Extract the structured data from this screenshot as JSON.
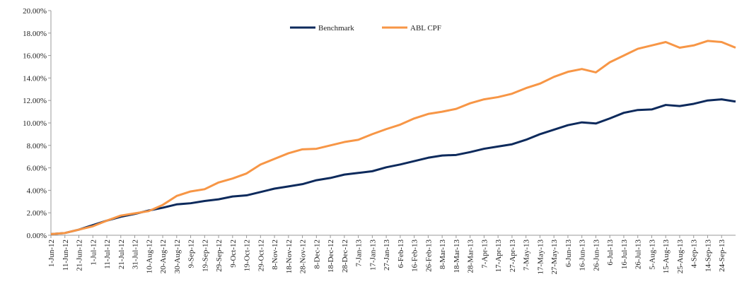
{
  "chart_data": {
    "type": "line",
    "categories": [
      "1-Jun-12",
      "11-Jun-12",
      "21-Jun-12",
      "1-Jul-12",
      "11-Jul-12",
      "21-Jul-12",
      "31-Jul-12",
      "10-Aug-12",
      "20-Aug-12",
      "30-Aug-12",
      "9-Sep-12",
      "19-Sep-12",
      "29-Sep-12",
      "9-Oct-12",
      "19-Oct-12",
      "29-Oct-12",
      "8-Nov-12",
      "18-Nov-12",
      "28-Nov-12",
      "8-Dec-12",
      "18-Dec-12",
      "28-Dec-12",
      "7-Jan-13",
      "17-Jan-13",
      "27-Jan-13",
      "6-Feb-13",
      "16-Feb-13",
      "26-Feb-13",
      "8-Mar-13",
      "18-Mar-13",
      "28-Mar-13",
      "7-Apr-13",
      "17-Apr-13",
      "27-Apr-13",
      "7-May-13",
      "17-May-13",
      "27-May-13",
      "6-Jun-13",
      "16-Jun-13",
      "26-Jun-13",
      "6-Jul-13",
      "16-Jul-13",
      "26-Jul-13",
      "5-Aug-13",
      "15-Aug-13",
      "25-Aug-13",
      "4-Sep-13",
      "14-Sep-13",
      "24-Sep-13",
      null
    ],
    "series": [
      {
        "name": "Benchmark",
        "color": "#0d2a5c",
        "values": [
          0.1,
          0.2,
          0.5,
          0.9,
          1.3,
          1.65,
          1.9,
          2.2,
          2.45,
          2.75,
          2.85,
          3.05,
          3.2,
          3.45,
          3.55,
          3.85,
          4.15,
          4.35,
          4.55,
          4.9,
          5.1,
          5.4,
          5.55,
          5.7,
          6.05,
          6.3,
          6.6,
          6.9,
          7.1,
          7.15,
          7.4,
          7.7,
          7.9,
          8.1,
          8.5,
          9.0,
          9.4,
          9.8,
          10.05,
          9.95,
          10.4,
          10.9,
          11.15,
          11.2,
          11.6,
          11.5,
          11.7,
          12.0,
          12.1,
          11.9
        ]
      },
      {
        "name": "ABL CPF",
        "color": "#f79646",
        "values": [
          0.1,
          0.2,
          0.5,
          0.8,
          1.3,
          1.75,
          1.95,
          2.15,
          2.7,
          3.5,
          3.9,
          4.1,
          4.7,
          5.05,
          5.5,
          6.3,
          6.8,
          7.3,
          7.65,
          7.7,
          8.0,
          8.3,
          8.5,
          9.0,
          9.45,
          9.85,
          10.4,
          10.8,
          11.0,
          11.25,
          11.75,
          12.1,
          12.3,
          12.6,
          13.1,
          13.5,
          14.1,
          14.55,
          14.8,
          14.5,
          15.4,
          16.0,
          16.6,
          16.9,
          17.2,
          16.7,
          16.9,
          17.3,
          17.2,
          16.7
        ]
      }
    ],
    "ylim": [
      0,
      20
    ],
    "yticks": [
      {
        "value": 0,
        "label": "0.00%"
      },
      {
        "value": 2,
        "label": "2.00%"
      },
      {
        "value": 4,
        "label": "4.00%"
      },
      {
        "value": 6,
        "label": "6.00%"
      },
      {
        "value": 8,
        "label": "8.00%"
      },
      {
        "value": 10,
        "label": "10.00%"
      },
      {
        "value": 12,
        "label": "12.00%"
      },
      {
        "value": 14,
        "label": "14.00%"
      },
      {
        "value": 16,
        "label": "16.00%"
      },
      {
        "value": 18,
        "label": "18.00%"
      },
      {
        "value": 20,
        "label": "20.00%"
      }
    ],
    "legend": "top"
  }
}
